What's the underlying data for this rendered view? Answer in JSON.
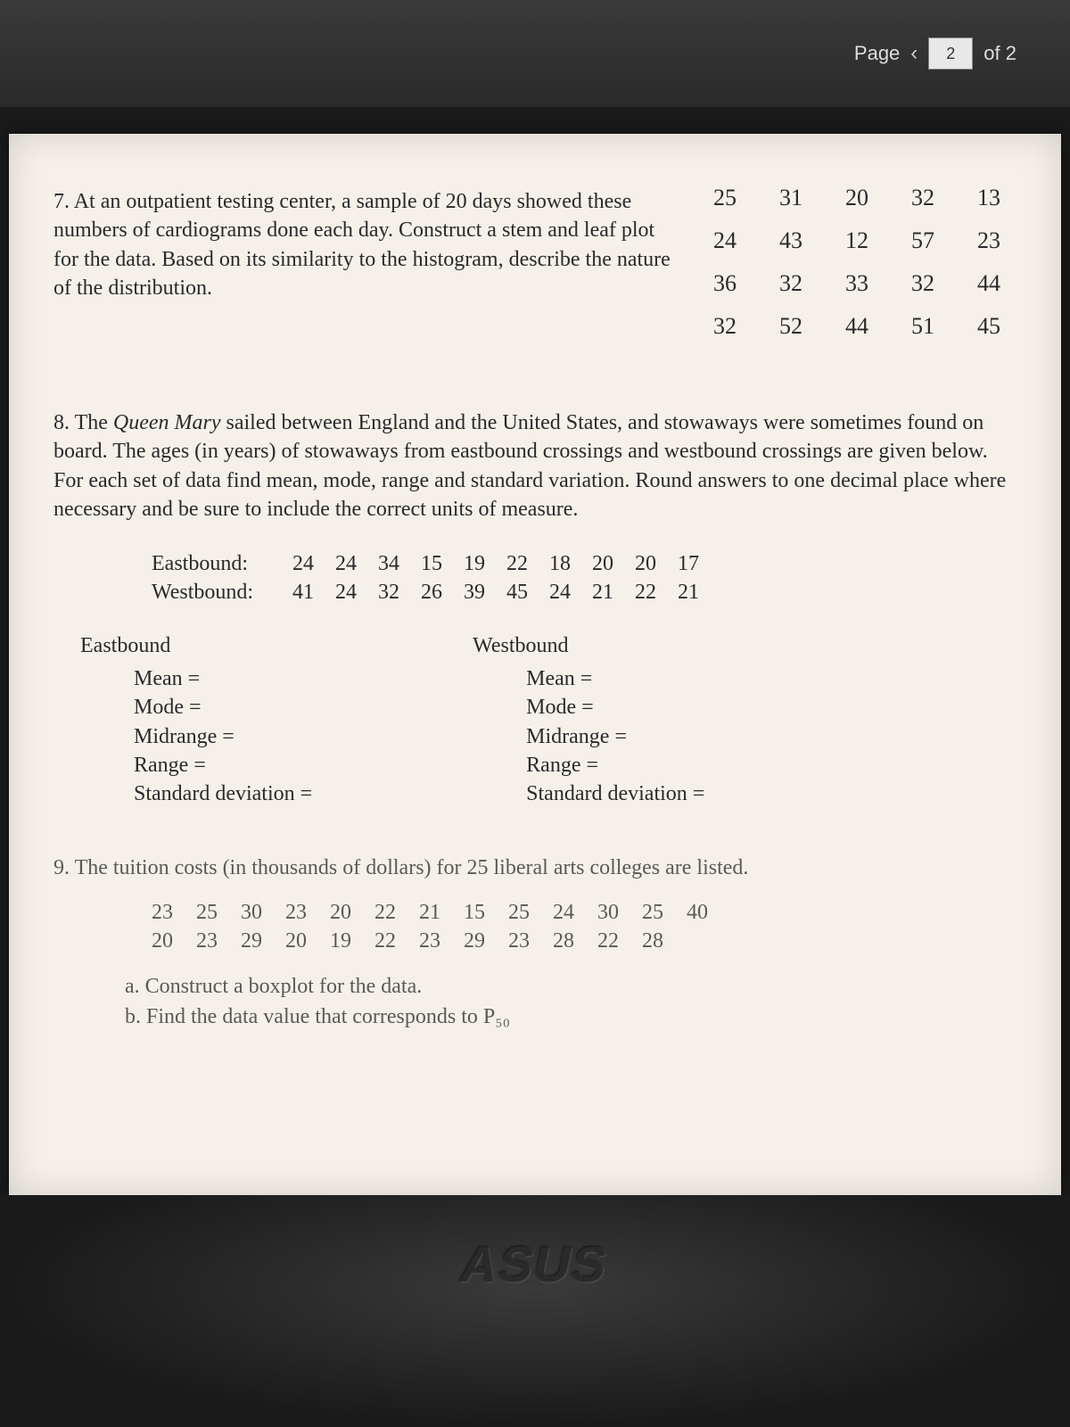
{
  "topbar": {
    "page_label": "Page",
    "page_current": "2",
    "page_total": "of 2"
  },
  "q7": {
    "number": "7.",
    "text": "At an outpatient testing center, a sample of 20 days showed these numbers of cardiograms done each day. Construct a stem and leaf plot for the data.  Based on its similarity to the histogram, describe the nature of the distribution.",
    "data": [
      "25",
      "31",
      "20",
      "32",
      "13",
      "24",
      "43",
      "12",
      "57",
      "23",
      "36",
      "32",
      "33",
      "32",
      "44",
      "32",
      "52",
      "44",
      "51",
      "45"
    ]
  },
  "q8": {
    "number": "8.",
    "intro_a": "The ",
    "ship": "Queen Mary",
    "intro_b": " sailed between England and the United States, and stowaways were sometimes found on board. The ages (in years) of stowaways from eastbound crossings and westbound crossings are given below.  For each set of data find mean, mode, range and standard variation. Round answers to one decimal place where necessary and be sure to include the correct units of measure.",
    "east_label": "Eastbound:",
    "west_label": "Westbound:",
    "east": [
      "24",
      "24",
      "34",
      "15",
      "19",
      "22",
      "18",
      "20",
      "20",
      "17"
    ],
    "west": [
      "41",
      "24",
      "32",
      "26",
      "39",
      "45",
      "24",
      "21",
      "22",
      "21"
    ],
    "col_east_head": "Eastbound",
    "col_west_head": "Westbound",
    "stat_labels": [
      "Mean =",
      "Mode =",
      "Midrange =",
      "Range =",
      "Standard deviation ="
    ]
  },
  "q9": {
    "number": "9.",
    "intro": "The tuition costs (in thousands of dollars) for 25 liberal arts colleges are listed.",
    "row1": [
      "23",
      "25",
      "30",
      "23",
      "20",
      "22",
      "21",
      "15",
      "25",
      "24",
      "30",
      "25",
      "40"
    ],
    "row2": [
      "20",
      "23",
      "29",
      "20",
      "19",
      "22",
      "23",
      "29",
      "23",
      "28",
      "22",
      "28"
    ],
    "sub_a": "a.   Construct a boxplot for the data.",
    "sub_b": "b.   Find the data value that corresponds to P₅₀"
  },
  "logo": "ASUS",
  "colors": {
    "paper": "#f5f1e8",
    "bg": "#1a1a1a",
    "text": "#2a2a2a",
    "faded": "#5a5a55"
  }
}
